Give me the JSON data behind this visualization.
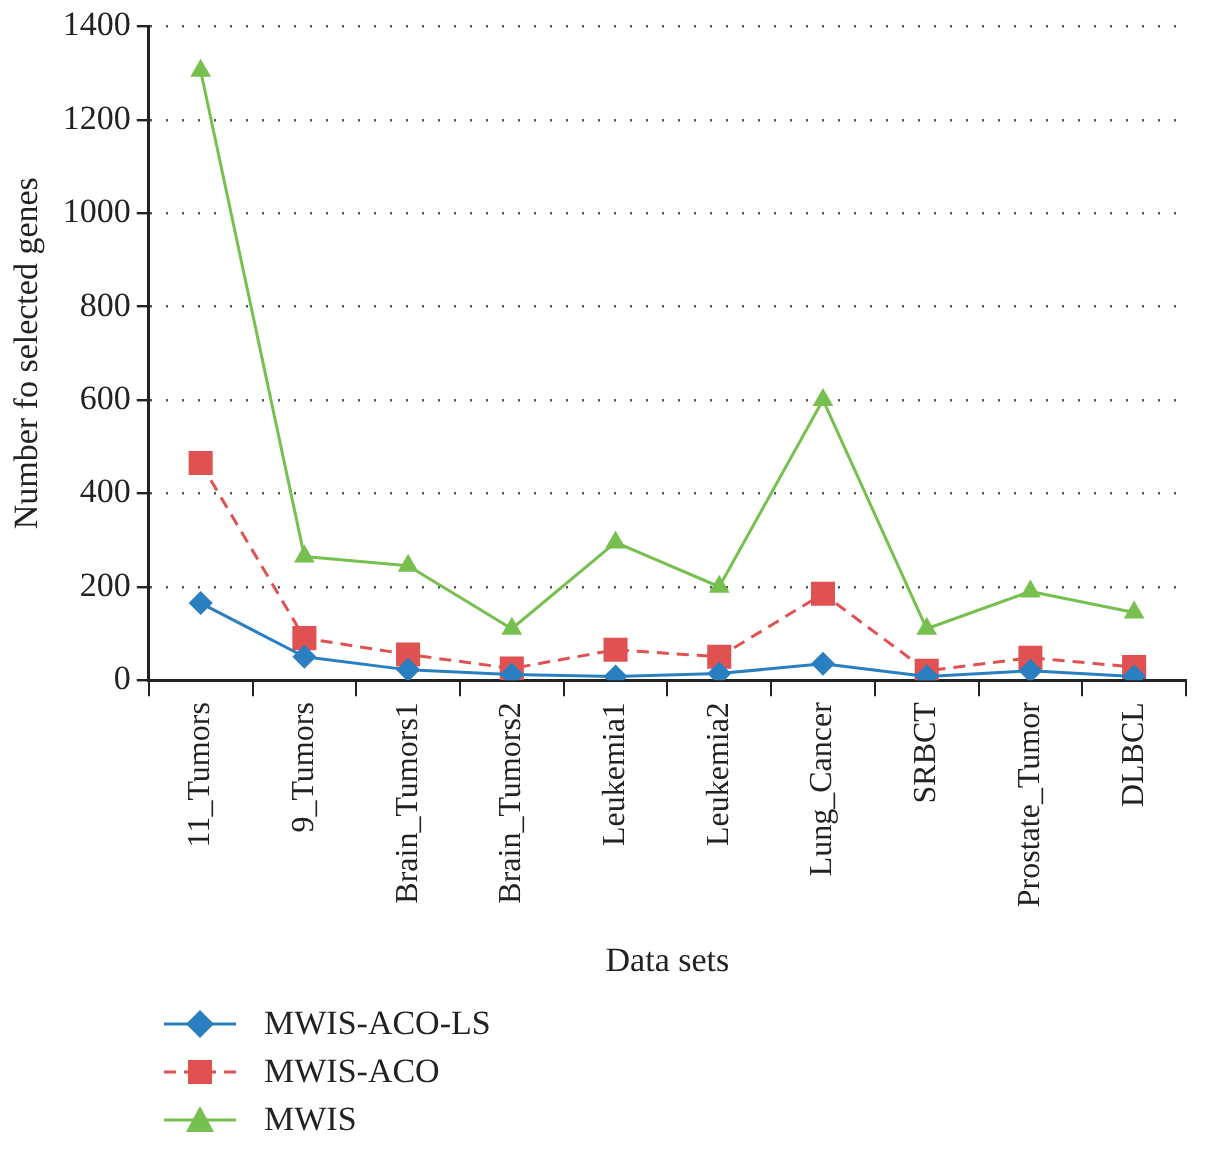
{
  "chart_data": {
    "type": "line",
    "xlabel": "Data sets",
    "ylabel": "Number fo selected genes",
    "categories": [
      "11_Tumors",
      "9_Tumors",
      "Brain_Tumors1",
      "Brain_Tumors2",
      "Leukemia1",
      "Leukemia2",
      "Lung_Cancer",
      "SRBCT",
      "Prostate_Tumor",
      "DLBCL"
    ],
    "series": [
      {
        "name": "MWIS-ACO-LS",
        "color": "#2a7fc1",
        "marker": "diamond",
        "line_style": "solid",
        "values": [
          165,
          50,
          22,
          12,
          8,
          14,
          35,
          8,
          20,
          8
        ]
      },
      {
        "name": "MWIS-ACO",
        "color": "#e05252",
        "marker": "square",
        "line_style": "dashed",
        "values": [
          465,
          90,
          55,
          25,
          65,
          50,
          185,
          20,
          48,
          28
        ]
      },
      {
        "name": "MWIS",
        "color": "#77bf4f",
        "marker": "triangle",
        "line_style": "solid",
        "values": [
          1305,
          265,
          245,
          110,
          295,
          200,
          600,
          110,
          190,
          145
        ]
      }
    ],
    "ylim": [
      0,
      1400
    ],
    "yticks": [
      0,
      200,
      400,
      600,
      800,
      1000,
      1200,
      1400
    ],
    "grid": "y",
    "legend": "bottom left"
  }
}
